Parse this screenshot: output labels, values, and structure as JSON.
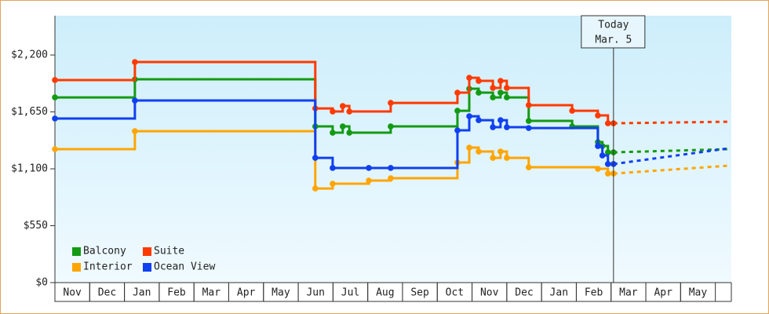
{
  "chart_data": {
    "type": "step-line",
    "xticks": [
      {
        "value": 0,
        "label": "Nov"
      },
      {
        "value": 1,
        "label": "Dec"
      },
      {
        "value": 2,
        "label": "Jan"
      },
      {
        "value": 3,
        "label": "Feb"
      },
      {
        "value": 4,
        "label": "Mar"
      },
      {
        "value": 5,
        "label": "Apr"
      },
      {
        "value": 6,
        "label": "May"
      },
      {
        "value": 7,
        "label": "Jun"
      },
      {
        "value": 8,
        "label": "Jul"
      },
      {
        "value": 9,
        "label": "Aug"
      },
      {
        "value": 10,
        "label": "Sep"
      },
      {
        "value": 11,
        "label": "Oct"
      },
      {
        "value": 12,
        "label": "Nov"
      },
      {
        "value": 13,
        "label": "Dec"
      },
      {
        "value": 14,
        "label": "Jan"
      },
      {
        "value": 15,
        "label": "Feb"
      },
      {
        "value": 16,
        "label": "Mar"
      },
      {
        "value": 17,
        "label": "Apr"
      },
      {
        "value": 18,
        "label": "May"
      }
    ],
    "xlim": [
      0,
      19.46
    ],
    "ylim": [
      0,
      2580
    ],
    "yticks": [
      {
        "value": 0,
        "label": "$0"
      },
      {
        "value": 550,
        "label": "$550"
      },
      {
        "value": 1100,
        "label": "$1,100"
      },
      {
        "value": 1650,
        "label": "$1,650"
      },
      {
        "value": 2200,
        "label": "$2,200"
      }
    ],
    "annotation": {
      "lines": [
        "Today",
        "Mar. 5"
      ],
      "x": 16.07
    },
    "legend": "lower-left",
    "series": [
      {
        "name": "Balcony",
        "color": "#139a13",
        "x": [
          0,
          2.3,
          7.49,
          7.99,
          8.28,
          8.47,
          9.66,
          11.58,
          11.92,
          12.19,
          12.6,
          12.82,
          13.0,
          13.63,
          14.88,
          15.62,
          15.75,
          15.91,
          16.07
        ],
        "values": [
          1790,
          1965,
          1510,
          1449,
          1510,
          1449,
          1510,
          1661,
          1874,
          1836,
          1790,
          1836,
          1790,
          1563,
          1510,
          1358,
          1320,
          1259,
          1259
        ],
        "forecast": {
          "x": [
            16.07,
            19.37
          ],
          "values": [
            1259,
            1290
          ]
        }
      },
      {
        "name": "Suite",
        "color": "#ff3a00",
        "x": [
          0,
          2.3,
          7.49,
          7.99,
          8.28,
          8.47,
          9.66,
          11.58,
          11.92,
          12.19,
          12.6,
          12.82,
          13.0,
          13.63,
          14.88,
          15.62,
          15.91,
          16.07
        ],
        "values": [
          1958,
          2132,
          1684,
          1654,
          1707,
          1654,
          1737,
          1836,
          1980,
          1950,
          1882,
          1950,
          1882,
          1715,
          1661,
          1616,
          1540,
          1540
        ],
        "forecast": {
          "x": [
            16.07,
            19.37
          ],
          "values": [
            1540,
            1555
          ]
        }
      },
      {
        "name": "Interior",
        "color": "#ffa500",
        "x": [
          0,
          2.3,
          7.49,
          7.99,
          9.03,
          9.66,
          11.58,
          11.92,
          12.19,
          12.6,
          12.82,
          13.0,
          13.63,
          15.62,
          15.91,
          16.07
        ],
        "values": [
          1290,
          1464,
          910,
          956,
          986,
          1009,
          1161,
          1305,
          1267,
          1206,
          1267,
          1206,
          1115,
          1100,
          1054,
          1054
        ],
        "forecast": {
          "x": [
            16.07,
            19.37
          ],
          "values": [
            1054,
            1130
          ]
        }
      },
      {
        "name": "Ocean View",
        "color": "#1040f0",
        "x": [
          0,
          2.3,
          7.49,
          7.99,
          9.03,
          9.66,
          11.58,
          11.92,
          12.19,
          12.6,
          12.82,
          13.0,
          13.63,
          15.62,
          15.75,
          15.91,
          16.07
        ],
        "values": [
          1586,
          1760,
          1206,
          1108,
          1108,
          1108,
          1472,
          1608,
          1570,
          1502,
          1570,
          1502,
          1494,
          1320,
          1229,
          1146,
          1146
        ],
        "forecast": {
          "x": [
            16.07,
            19.37
          ],
          "values": [
            1146,
            1297
          ]
        }
      }
    ]
  }
}
